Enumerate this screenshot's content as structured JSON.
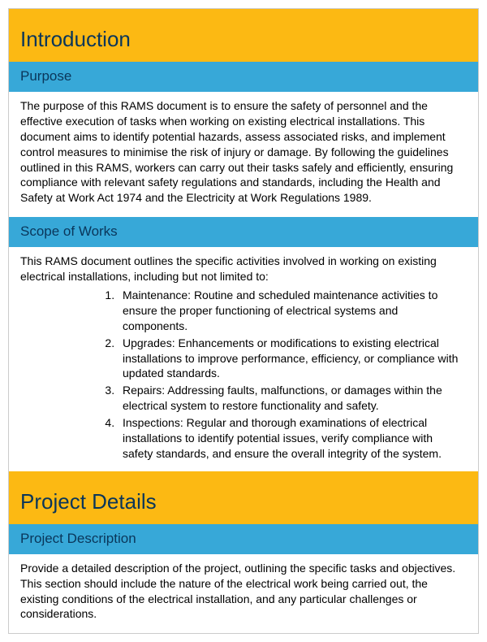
{
  "colors": {
    "primary_band": "#fcb913",
    "secondary_band": "#37a8d8",
    "heading_text": "#0a365a",
    "body_text": "#000000",
    "page_bg": "#ffffff",
    "border": "#cccccc"
  },
  "typography": {
    "h1_fontsize": 26,
    "h2_fontsize": 17,
    "body_fontsize": 14,
    "font_family": "Arial"
  },
  "sections": {
    "intro": {
      "title": "Introduction",
      "purpose": {
        "heading": "Purpose",
        "text": "The purpose of this RAMS document is to ensure the safety of personnel and the effective execution of tasks when working on existing electrical installations. This document aims to identify potential hazards, assess associated risks, and implement control measures to minimise the risk of injury or damage. By following the guidelines outlined in this RAMS, workers can carry out their tasks safely and efficiently, ensuring compliance with relevant safety regulations and standards, including the Health and Safety at Work Act 1974 and the Electricity at Work Regulations 1989."
      },
      "scope": {
        "heading": "Scope of Works",
        "intro_text": "This RAMS document outlines the specific activities involved in working on existing electrical installations, including but not limited to:",
        "items": [
          "Maintenance: Routine and scheduled maintenance activities to ensure the proper functioning of electrical systems and components.",
          "Upgrades: Enhancements or modifications to existing electrical installations to improve performance, efficiency, or compliance with updated standards.",
          "Repairs: Addressing faults, malfunctions, or damages within the electrical system to restore functionality and safety.",
          "Inspections: Regular and thorough examinations of electrical installations to identify potential issues, verify compliance with safety standards, and ensure the overall integrity of the system."
        ]
      }
    },
    "project": {
      "title": "Project Details",
      "description": {
        "heading": "Project Description",
        "text": "Provide a detailed description of the project, outlining the specific tasks and objectives. This section should include the nature of the electrical work being carried out, the existing conditions of the electrical installation, and any particular challenges or considerations."
      }
    }
  }
}
